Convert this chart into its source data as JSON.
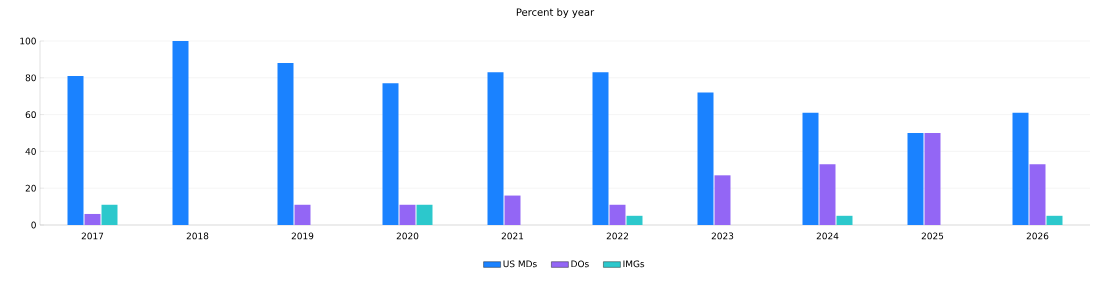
{
  "chart_data": {
    "type": "bar",
    "title": "Percent by year",
    "categories": [
      "2017",
      "2018",
      "2019",
      "2020",
      "2021",
      "2022",
      "2023",
      "2024",
      "2025",
      "2026"
    ],
    "series": [
      {
        "name": "US MDs",
        "color": "#1a82ff",
        "values": [
          81,
          100,
          88,
          77,
          83,
          83,
          72,
          61,
          50,
          61
        ]
      },
      {
        "name": "DOs",
        "color": "#9366f5",
        "values": [
          6,
          null,
          11,
          11,
          16,
          11,
          27,
          33,
          50,
          33
        ]
      },
      {
        "name": "IMGs",
        "color": "#2cc8cc",
        "values": [
          11,
          null,
          null,
          11,
          null,
          5,
          null,
          5,
          null,
          5
        ]
      }
    ],
    "ylim": [
      0,
      100
    ],
    "yticks": [
      0,
      20,
      40,
      60,
      80,
      100
    ],
    "grid": "y",
    "legend": "bottom"
  }
}
